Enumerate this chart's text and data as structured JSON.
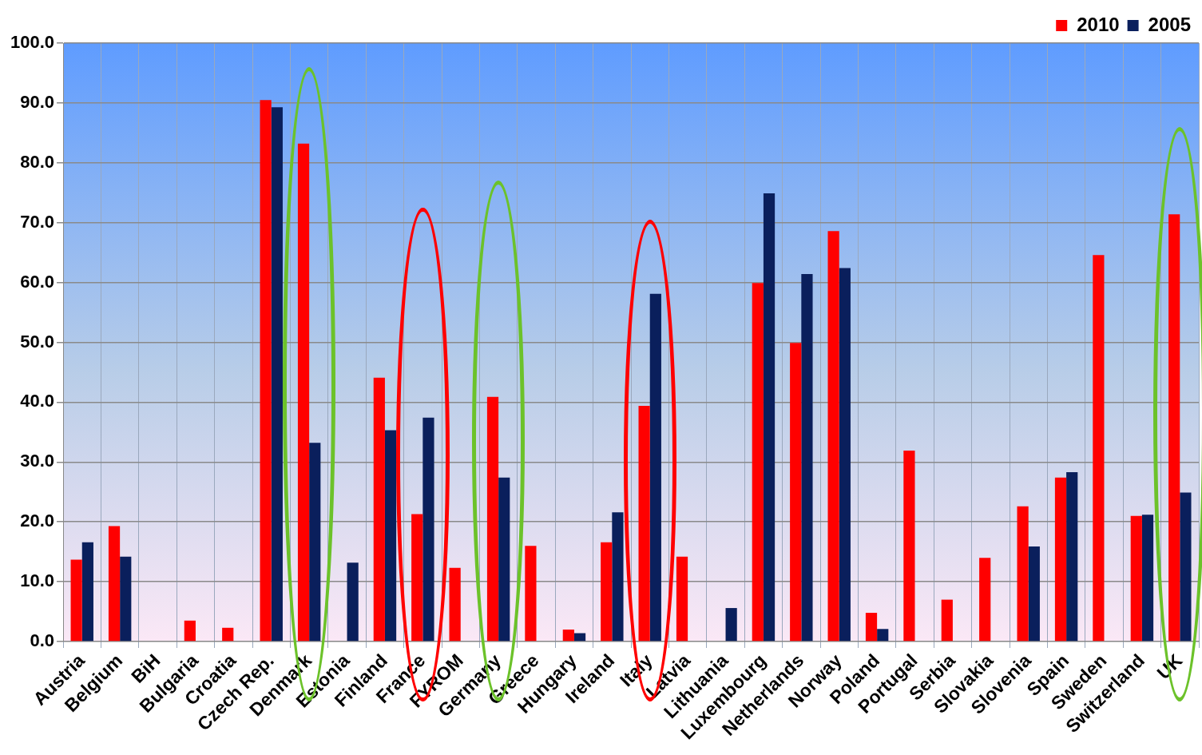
{
  "chart_data": {
    "type": "bar",
    "categories": [
      "Austria",
      "Belgium",
      "BiH",
      "Bulgaria",
      "Croatia",
      "Czech Rep.",
      "Denmark",
      "Estonia",
      "Finland",
      "France",
      "FYROM",
      "Germany",
      "Greece",
      "Hungary",
      "Ireland",
      "Italy",
      "Latvia",
      "Lithuania",
      "Luxembourg",
      "Netherlands",
      "Norway",
      "Poland",
      "Portugal",
      "Serbia",
      "Slovakia",
      "Slovenia",
      "Spain",
      "Sweden",
      "Switzerland",
      "UK"
    ],
    "series": [
      {
        "name": "2010",
        "color": "#ff0000",
        "values": [
          13.7,
          19.3,
          null,
          3.5,
          2.3,
          90.5,
          83.2,
          null,
          44.1,
          21.3,
          12.3,
          40.9,
          16.0,
          2.0,
          16.6,
          39.4,
          14.2,
          null,
          59.9,
          49.9,
          68.6,
          4.8,
          31.9,
          7.0,
          14.0,
          22.6,
          27.4,
          64.6,
          21.0,
          71.4
        ]
      },
      {
        "name": "2005",
        "color": "#0a1f5c",
        "values": [
          16.6,
          14.2,
          null,
          null,
          null,
          89.3,
          33.2,
          13.2,
          35.3,
          37.4,
          null,
          27.4,
          null,
          1.4,
          21.6,
          58.1,
          null,
          5.6,
          74.9,
          61.4,
          62.4,
          2.1,
          null,
          null,
          null,
          15.9,
          28.3,
          null,
          21.2,
          24.9
        ]
      }
    ],
    "ylim": [
      0,
      100
    ],
    "yticks": [
      {
        "value": 0,
        "label": "0.0"
      },
      {
        "value": 10,
        "label": "10.0"
      },
      {
        "value": 20,
        "label": "20.0"
      },
      {
        "value": 30,
        "label": "30.0"
      },
      {
        "value": 40,
        "label": "40.0"
      },
      {
        "value": 50,
        "label": "50.0"
      },
      {
        "value": 60,
        "label": "60.0"
      },
      {
        "value": 70,
        "label": "70.0"
      },
      {
        "value": 80,
        "label": "80.0"
      },
      {
        "value": 90,
        "label": "90.0"
      },
      {
        "value": 100,
        "label": "100.0"
      }
    ],
    "grid": true,
    "legend": "top right"
  }
}
